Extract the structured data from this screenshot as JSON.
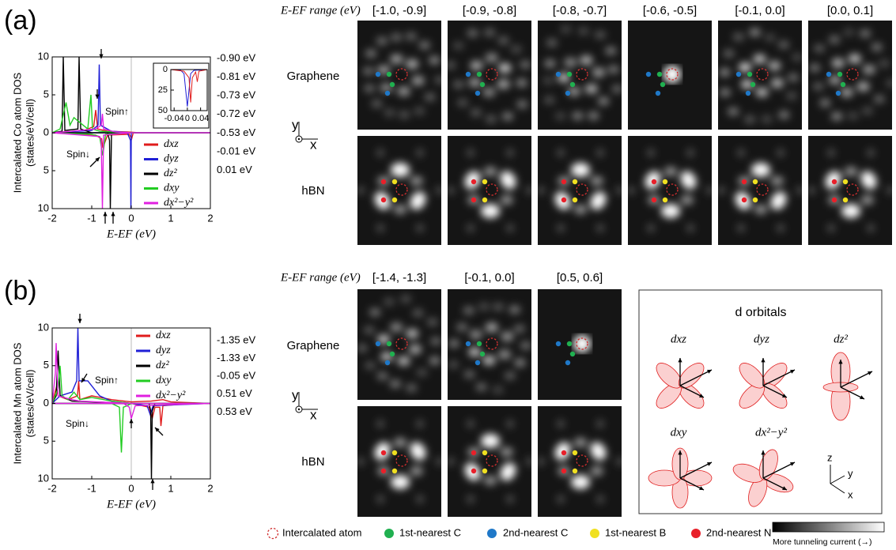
{
  "chart_data": [
    {
      "type": "line",
      "xlabel": "E-EF (eV)",
      "ylabel": [
        "Intercalated Co atom DOS",
        "(states/eV/cell)"
      ],
      "xlim": [
        -2,
        2
      ],
      "ylim": [
        -10,
        10
      ],
      "xticks": [
        -2,
        -1,
        0,
        1,
        2
      ],
      "yticks": [
        {
          "value": -10,
          "label": "10"
        },
        {
          "value": -5,
          "label": "5"
        },
        0,
        5,
        10
      ],
      "annotations": [
        "Spin↑",
        "Spin↓"
      ],
      "series": [
        {
          "name": "dxz",
          "color": "#e01c1c",
          "x": [
            -2,
            -1.2,
            -0.95,
            -0.9,
            -0.85,
            -0.6,
            -0.1,
            0.2,
            2,
            null,
            -2,
            -0.9,
            -0.75,
            -0.72,
            -0.6,
            -0.05,
            0.01,
            0.05,
            2
          ],
          "values": [
            0,
            0.3,
            0.8,
            3,
            0.5,
            0.2,
            0.1,
            0,
            0,
            null,
            0,
            -0.3,
            -0.8,
            -2,
            -0.3,
            -0.2,
            -0.8,
            0,
            0
          ]
        },
        {
          "name": "dyz",
          "color": "#1f1fd6",
          "x": [
            -2,
            -1,
            -0.84,
            -0.81,
            -0.78,
            -0.5,
            0,
            2,
            null,
            -2,
            -0.1,
            -0.02,
            -0.01,
            0,
            2
          ],
          "values": [
            0,
            0.3,
            1,
            9,
            1,
            0.2,
            0,
            0,
            null,
            0,
            0,
            -1,
            -10,
            0,
            0
          ]
        },
        {
          "name": "dz²",
          "color": "#000000",
          "x": [
            -2,
            -1.75,
            -1.72,
            -1.68,
            -1.35,
            -1.32,
            -1.28,
            -1,
            2,
            null,
            -2,
            -0.6,
            -0.55,
            -0.53,
            -0.5,
            2
          ],
          "values": [
            0,
            0.2,
            10,
            0.3,
            0.5,
            10,
            0.5,
            0,
            0,
            null,
            0,
            0,
            -1,
            -10,
            0,
            0
          ]
        },
        {
          "name": "dxy",
          "color": "#22cc22",
          "x": [
            -2,
            -1.8,
            -1.65,
            -1.55,
            -1.45,
            -1.1,
            -1.02,
            -0.98,
            -0.8,
            0,
            2,
            null,
            -2,
            -1,
            -0.8,
            -0.72,
            -0.65,
            0,
            2
          ],
          "values": [
            0,
            0.5,
            4,
            1,
            2,
            0.5,
            5,
            0.5,
            0.2,
            0,
            0,
            null,
            0,
            -0.2,
            -0.5,
            -3,
            -0.2,
            0,
            0
          ]
        },
        {
          "name": "dx²−y²",
          "color": "#e020e0",
          "x": [
            -2,
            -1.5,
            -0.9,
            -0.76,
            -0.73,
            -0.7,
            -0.4,
            0,
            2,
            null,
            -2,
            -0.8,
            -0.76,
            -0.73,
            -0.7,
            0,
            2
          ],
          "values": [
            0,
            0.2,
            0.5,
            1,
            2.5,
            0.5,
            0.1,
            0,
            0,
            null,
            0,
            -0.5,
            -1,
            -10,
            -0.3,
            0,
            0
          ]
        }
      ]
    },
    {
      "type": "line",
      "xlim": [
        -0.05,
        0.06
      ],
      "ylim": [
        50,
        0
      ],
      "xticks": [
        -0.04,
        0,
        0.04
      ],
      "yticks": [
        0,
        25,
        50
      ],
      "series": [
        {
          "color": "#1f1fd6",
          "x": [
            -0.05,
            -0.02,
            -0.01,
            0,
            0.01,
            0.02,
            0.06
          ],
          "values": [
            0,
            1,
            5,
            45,
            5,
            1,
            0
          ]
        },
        {
          "color": "#e01c1c",
          "x": [
            -0.05,
            -0.01,
            0.005,
            0.01,
            0.015,
            0.025,
            0.03,
            0.035,
            0.06
          ],
          "values": [
            0,
            2,
            10,
            40,
            10,
            3,
            15,
            2,
            0
          ]
        }
      ]
    },
    {
      "type": "line",
      "xlabel": "E-EF (eV)",
      "ylabel": [
        "Intercalated Mn atom DOS",
        "(states/eV/cell)"
      ],
      "xlim": [
        -2,
        2
      ],
      "ylim": [
        -10,
        10
      ],
      "xticks": [
        -2,
        -1,
        0,
        1,
        2
      ],
      "yticks": [
        {
          "value": -10,
          "label": "10"
        },
        {
          "value": -5,
          "label": "5"
        },
        0,
        5,
        10
      ],
      "annotations": [
        "Spin↑",
        "Spin↓"
      ],
      "series": [
        {
          "name": "dxz",
          "color": "#e01c1c",
          "x": [
            -2,
            -1.9,
            -1.85,
            -1.6,
            -1.36,
            -1.33,
            -1.3,
            -1.0,
            -0.5,
            0,
            0.5,
            0.8,
            1,
            2,
            null,
            -2,
            -0.5,
            0,
            0.45,
            0.53,
            0.6,
            0.72,
            0.75,
            0.8,
            1.5,
            2
          ],
          "values": [
            0,
            2,
            1,
            0.5,
            1,
            3,
            0.5,
            1,
            0.5,
            0.2,
            0.3,
            0.5,
            0.2,
            0,
            null,
            0,
            0,
            0,
            -0.5,
            -2,
            -0.5,
            -0.5,
            -3,
            -0.3,
            0,
            0
          ]
        },
        {
          "name": "dyz",
          "color": "#1f1fd6",
          "x": [
            -2,
            -1.8,
            -1.5,
            -1.38,
            -1.35,
            -1.32,
            -1.1,
            -0.8,
            -0.5,
            0,
            2,
            null,
            -2,
            0,
            0.4,
            0.48,
            0.55,
            2
          ],
          "values": [
            0,
            1,
            1.5,
            3,
            10,
            3,
            3,
            1,
            0.3,
            0,
            0,
            null,
            0,
            0,
            -0.3,
            -1.5,
            -0.3,
            0
          ]
        },
        {
          "name": "dz²",
          "color": "#000000",
          "x": [
            -2,
            -1.9,
            -1.85,
            -1.8,
            -1.5,
            0,
            2,
            null,
            -2,
            0.45,
            0.49,
            0.51,
            0.53,
            0.6,
            2
          ],
          "values": [
            0,
            1,
            7,
            1,
            0.3,
            0,
            0,
            null,
            0,
            0,
            -1,
            -10,
            -1,
            0,
            0
          ]
        },
        {
          "name": "dxy",
          "color": "#22cc22",
          "x": [
            -2,
            -1.85,
            -1.8,
            -1.75,
            -1.6,
            -1.45,
            -1.3,
            -1.0,
            -0.5,
            0,
            2,
            null,
            -2,
            -0.5,
            -0.3,
            -0.25,
            -0.2,
            -0.1,
            0,
            2
          ],
          "values": [
            0,
            2,
            5,
            1,
            0.5,
            1.5,
            0.5,
            0.8,
            0.3,
            0,
            0,
            null,
            0,
            0,
            -0.5,
            -6.5,
            -0.5,
            -0.3,
            0,
            0
          ]
        },
        {
          "name": "dx²−y²",
          "color": "#e020e0",
          "x": [
            -2,
            -1.92,
            -1.9,
            -1.85,
            -1.5,
            -1.3,
            0,
            2,
            null,
            -2,
            -0.2,
            -0.05,
            0,
            0.1,
            2
          ],
          "values": [
            0,
            4,
            8,
            1,
            0.5,
            0.3,
            0,
            0,
            null,
            0,
            0,
            -0.5,
            -2,
            -0.3,
            0
          ]
        }
      ]
    }
  ],
  "panels": [
    {
      "label": "(a)",
      "header": "E-EF range (eV)",
      "ranges": [
        "[-1.0, -0.9]",
        "[-0.9, -0.8]",
        "[-0.8, -0.7]",
        "[-0.6, -0.5]",
        "[-0.1, 0.0]",
        "[0.0, 0.1]"
      ],
      "rows": [
        "Graphene",
        "hBN"
      ],
      "axes": [
        "y",
        "x"
      ],
      "energies": [
        {
          "text": "-0.90 eV",
          "color": "#e0202a"
        },
        {
          "text": "-0.81 eV",
          "color": "#1f1fd6"
        },
        {
          "text": "-0.73 eV",
          "color": "#cc22cc"
        },
        {
          "text": "-0.72 eV",
          "color": "#22bb22"
        },
        {
          "text": "-0.53 eV",
          "color": "#000000"
        },
        {
          "text": "-0.01 eV",
          "color": "#1f1fd6"
        },
        {
          "text": "0.01 eV",
          "color": "#e0202a"
        }
      ]
    },
    {
      "label": "(b)",
      "header": "E-EF range (eV)",
      "ranges": [
        "[-1.4, -1.3]",
        "[-0.1, 0.0]",
        "[0.5, 0.6]"
      ],
      "rows": [
        "Graphene",
        "hBN"
      ],
      "axes": [
        "y",
        "x"
      ],
      "energies": [
        {
          "text": "-1.35 eV",
          "color": "#1f1fd6"
        },
        {
          "text": "-1.33 eV",
          "color": "#e0202a"
        },
        {
          "text": "-0.05 eV",
          "color": "#cc22cc"
        },
        {
          "text": "0.51 eV",
          "color": "#000000"
        },
        {
          "text": "0.53 eV",
          "color": "#e0202a"
        }
      ]
    }
  ],
  "orbitals": {
    "title": "d orbitals",
    "labels": [
      "dxz",
      "dyz",
      "dz²",
      "dxy",
      "dx²−y²"
    ],
    "axes": [
      "z",
      "y",
      "x"
    ]
  },
  "legend": {
    "items": [
      "Intercalated atom",
      "1st-nearest C",
      "2nd-nearest C",
      "1st-nearest B",
      "2nd-nearest N"
    ],
    "colorbar": "More tunneling current (→)"
  }
}
